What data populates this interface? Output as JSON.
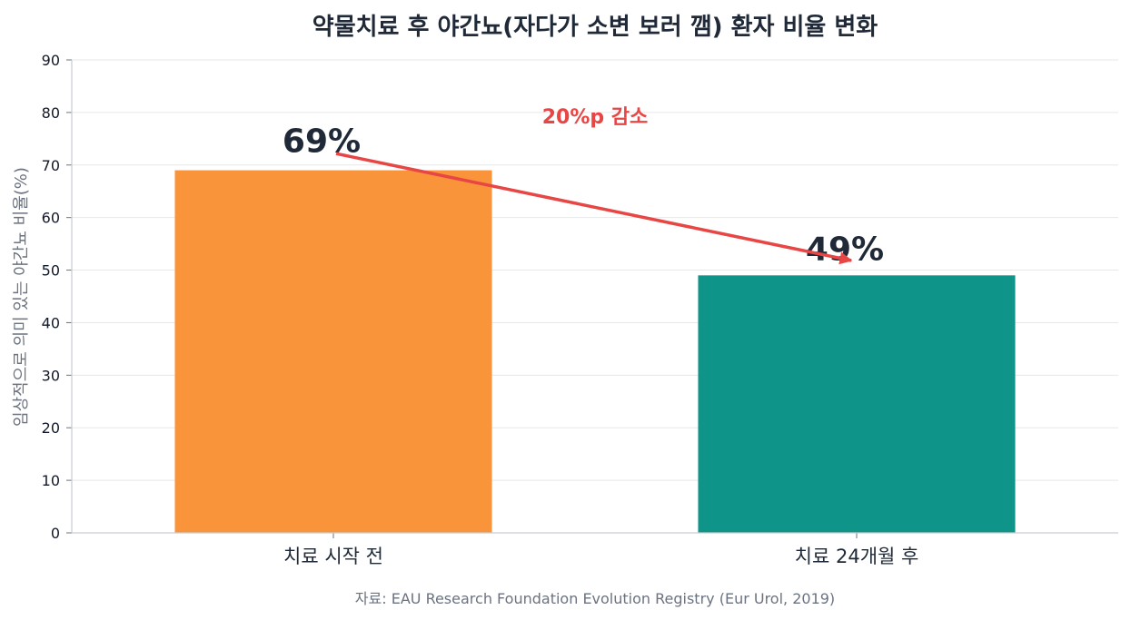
{
  "chart_data": {
    "type": "bar",
    "title": "약물치료 후 야간뇨(자다가 소변 보러 깸) 환자 비율 변화",
    "ylabel": "임상적으로 의미 있는 야간뇨 비율(%)",
    "xlabel": "",
    "categories": [
      "치료 시작 전",
      "치료 24개월 후"
    ],
    "values": [
      69,
      49
    ],
    "data_labels": [
      "69%",
      "49%"
    ],
    "bar_colors": [
      "#f9943b",
      "#0e9488"
    ],
    "ylim": [
      0,
      90
    ],
    "yticks": [
      0,
      10,
      20,
      30,
      40,
      50,
      60,
      70,
      80,
      90
    ],
    "grid": true,
    "annotation": {
      "text": "20%p 감소",
      "color": "#e84545",
      "from": 72,
      "to": 52
    },
    "source": "자료: EAU Research Foundation Evolution Registry (Eur Urol, 2019)"
  }
}
